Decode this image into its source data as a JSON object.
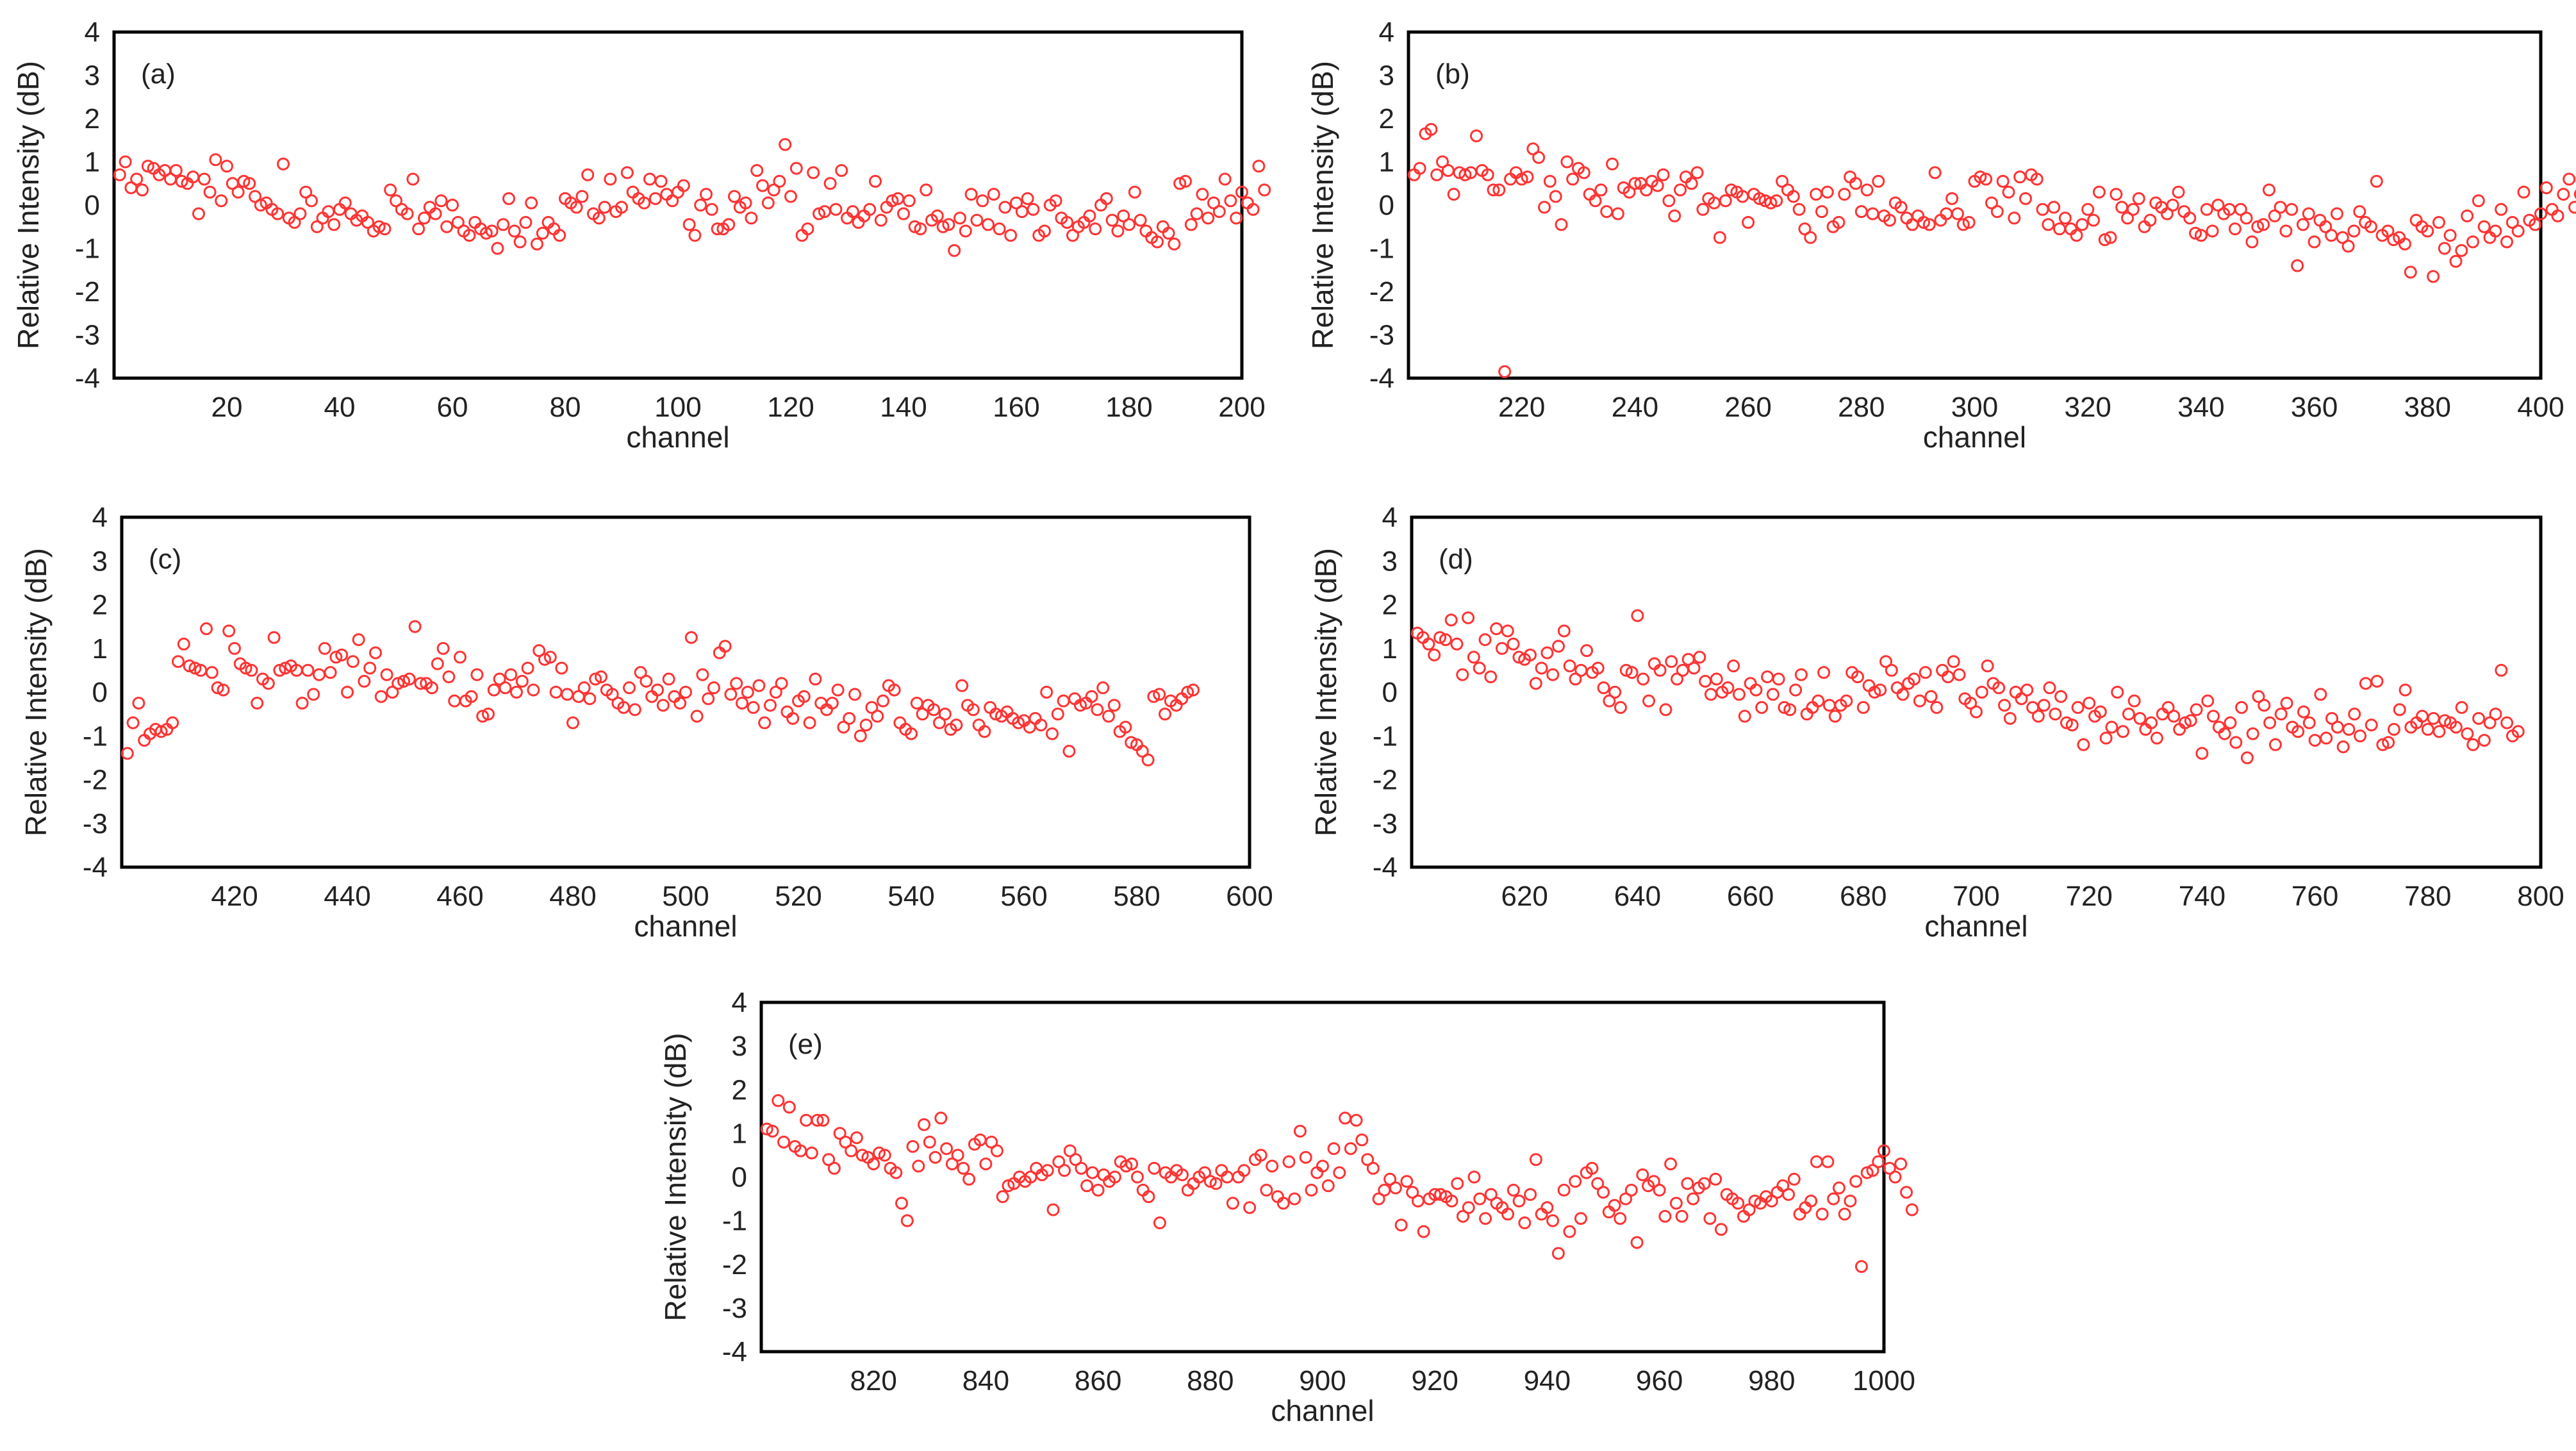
{
  "colors": {
    "marker": "#ff3333",
    "frame": "#000000",
    "text": "#222222"
  },
  "chart_data": [
    {
      "type": "scatter",
      "label": "(a)",
      "xlabel": "channel",
      "ylabel": "Relative Intensity (dB)",
      "xlim": [
        0,
        200
      ],
      "ylim": [
        -4,
        4
      ],
      "xticks": [
        "20",
        "40",
        "60",
        "80",
        "100",
        "120",
        "140",
        "160",
        "180",
        "200"
      ],
      "yticks": [
        "4",
        "3",
        "2",
        "1",
        "0",
        "-1",
        "-2",
        "-3",
        "-4"
      ],
      "x_start": 1,
      "values": [
        0.7,
        1.0,
        0.4,
        0.6,
        0.35,
        0.9,
        0.85,
        0.7,
        0.8,
        0.6,
        0.8,
        0.55,
        0.5,
        0.65,
        -0.2,
        0.6,
        0.3,
        1.05,
        0.1,
        0.9,
        0.5,
        0.3,
        0.55,
        0.5,
        0.2,
        0.0,
        0.05,
        -0.1,
        -0.2,
        0.95,
        -0.3,
        -0.4,
        -0.2,
        0.3,
        0.1,
        -0.5,
        -0.3,
        -0.15,
        -0.45,
        -0.1,
        0.05,
        -0.2,
        -0.35,
        -0.25,
        -0.4,
        -0.6,
        -0.5,
        -0.55,
        0.35,
        0.1,
        -0.1,
        -0.2,
        0.6,
        -0.55,
        -0.3,
        -0.05,
        -0.2,
        0.1,
        -0.5,
        0.0,
        -0.4,
        -0.6,
        -0.7,
        -0.4,
        -0.55,
        -0.65,
        -0.6,
        -1.0,
        -0.45,
        0.15,
        -0.6,
        -0.85,
        -0.4,
        0.05,
        -0.9,
        -0.65,
        -0.4,
        -0.55,
        -0.7,
        0.15,
        0.05,
        -0.05,
        0.2,
        0.7,
        -0.2,
        -0.3,
        -0.05,
        0.6,
        -0.15,
        -0.05,
        0.75,
        0.3,
        0.15,
        0.05,
        0.6,
        0.15,
        0.55,
        0.25,
        0.1,
        0.3,
        0.45,
        -0.45,
        -0.7,
        0.0,
        0.25,
        -0.1,
        -0.55,
        -0.55,
        -0.45,
        0.2,
        -0.05,
        0.05,
        -0.3,
        0.8,
        0.45,
        0.05,
        0.35,
        0.55,
        1.4,
        0.2,
        0.85,
        -0.7,
        -0.55,
        0.75,
        -0.2,
        -0.15,
        0.5,
        -0.1,
        0.8,
        -0.3,
        -0.15,
        -0.4,
        -0.25,
        -0.1,
        0.55,
        -0.35,
        -0.05,
        0.1,
        0.15,
        -0.2,
        0.1,
        -0.5,
        -0.55,
        0.35,
        -0.35,
        -0.25,
        -0.5,
        -0.45,
        -1.05,
        -0.3,
        -0.6,
        0.25,
        -0.35,
        0.1,
        -0.45,
        0.25,
        -0.55,
        -0.05,
        -0.7,
        0.05,
        -0.15,
        0.15,
        -0.1,
        -0.7,
        -0.6,
        0.0,
        0.1,
        -0.3,
        -0.4,
        -0.7,
        -0.5,
        -0.4,
        -0.25,
        -0.55,
        0.0,
        0.15,
        -0.35,
        -0.6,
        -0.25,
        -0.45,
        0.3,
        -0.35,
        -0.6,
        -0.75,
        -0.85,
        -0.5,
        -0.65,
        -0.9,
        0.5,
        0.55,
        -0.45,
        -0.2,
        0.25,
        -0.3,
        0.05,
        -0.15,
        0.6,
        0.1,
        -0.3,
        0.3,
        0.05,
        -0.1,
        0.9,
        0.35
      ]
    },
    {
      "type": "scatter",
      "label": "(b)",
      "xlabel": "channel",
      "ylabel": "Relative Intensity (dB)",
      "xlim": [
        200,
        400
      ],
      "ylim": [
        -4,
        4
      ],
      "xticks": [
        "220",
        "240",
        "260",
        "280",
        "300",
        "320",
        "340",
        "360",
        "380",
        "400"
      ],
      "yticks": [
        "4",
        "3",
        "2",
        "1",
        "0",
        "-1",
        "-2",
        "-3",
        "-4"
      ],
      "x_start": 201,
      "values": [
        0.7,
        0.85,
        1.65,
        1.75,
        0.7,
        1.0,
        0.8,
        0.25,
        0.75,
        0.7,
        0.75,
        1.6,
        0.8,
        0.7,
        0.35,
        0.35,
        -3.85,
        0.6,
        0.75,
        0.6,
        0.65,
        1.3,
        1.1,
        -0.05,
        0.55,
        0.2,
        -0.45,
        1.0,
        0.6,
        0.85,
        0.75,
        0.25,
        0.1,
        0.35,
        -0.15,
        0.95,
        -0.2,
        0.4,
        0.3,
        0.5,
        0.5,
        0.35,
        0.55,
        0.45,
        0.7,
        0.1,
        -0.25,
        0.35,
        0.65,
        0.5,
        0.75,
        -0.1,
        0.15,
        0.05,
        -0.75,
        0.1,
        0.35,
        0.3,
        0.2,
        -0.4,
        0.25,
        0.15,
        0.1,
        0.05,
        0.1,
        0.55,
        0.35,
        0.2,
        -0.1,
        -0.55,
        -0.75,
        0.25,
        -0.15,
        0.3,
        -0.5,
        -0.4,
        0.25,
        0.65,
        0.5,
        -0.15,
        0.35,
        -0.2,
        0.55,
        -0.25,
        -0.35,
        0.05,
        -0.05,
        -0.3,
        -0.45,
        -0.25,
        -0.4,
        -0.45,
        0.75,
        -0.35,
        -0.2,
        0.15,
        -0.2,
        -0.45,
        -0.4,
        0.55,
        0.65,
        0.6,
        0.05,
        -0.15,
        0.55,
        0.3,
        -0.3,
        0.65,
        0.15,
        0.7,
        0.6,
        -0.1,
        -0.45,
        -0.05,
        -0.55,
        -0.3,
        -0.55,
        -0.7,
        -0.45,
        -0.1,
        -0.35,
        0.3,
        -0.8,
        -0.75,
        0.25,
        -0.05,
        -0.3,
        -0.1,
        0.15,
        -0.5,
        -0.35,
        0.05,
        -0.05,
        -0.2,
        0.0,
        0.3,
        -0.15,
        -0.3,
        -0.65,
        -0.7,
        -0.1,
        -0.6,
        0.0,
        -0.2,
        -0.1,
        -0.55,
        -0.1,
        -0.3,
        -0.85,
        -0.5,
        -0.45,
        0.35,
        -0.25,
        -0.05,
        -0.6,
        -0.1,
        -1.4,
        -0.45,
        -0.2,
        -0.85,
        -0.35,
        -0.5,
        -0.7,
        -0.2,
        -0.75,
        -0.95,
        -0.6,
        -0.15,
        -0.4,
        -0.5,
        0.55,
        -0.7,
        -0.6,
        -0.8,
        -0.75,
        -0.9,
        -1.55,
        -0.35,
        -0.5,
        -0.6,
        -1.65,
        -0.4,
        -1.0,
        -0.7,
        -1.3,
        -1.05,
        -0.25,
        -0.85,
        0.1,
        -0.5,
        -0.75,
        -0.6,
        -0.1,
        -0.85,
        -0.4,
        -0.6,
        0.3,
        -0.35,
        -0.45,
        -0.2,
        0.4,
        -0.1,
        -0.25,
        0.25,
        0.6,
        -0.05,
        0.25
      ]
    },
    {
      "type": "scatter",
      "label": "(c)",
      "xlabel": "channel",
      "ylabel": "Relative Intensity (dB)",
      "xlim": [
        400,
        600
      ],
      "ylim": [
        -4,
        4
      ],
      "xticks": [
        "420",
        "440",
        "460",
        "480",
        "500",
        "520",
        "540",
        "560",
        "580",
        "600"
      ],
      "yticks": [
        "4",
        "3",
        "2",
        "1",
        "0",
        "-1",
        "-2",
        "-3",
        "-4"
      ],
      "x_start": 401,
      "values": [
        -1.4,
        -0.7,
        -0.25,
        -1.1,
        -0.95,
        -0.85,
        -0.9,
        -0.85,
        -0.7,
        0.7,
        1.1,
        0.6,
        0.55,
        0.5,
        1.45,
        0.45,
        0.1,
        0.05,
        1.4,
        1.0,
        0.65,
        0.55,
        0.5,
        -0.25,
        0.3,
        0.2,
        1.25,
        0.5,
        0.55,
        0.6,
        0.5,
        -0.25,
        0.5,
        -0.05,
        0.4,
        1.0,
        0.45,
        0.8,
        0.85,
        0.0,
        0.7,
        1.2,
        0.25,
        0.55,
        0.9,
        -0.1,
        0.4,
        0.0,
        0.2,
        0.25,
        0.3,
        1.5,
        0.2,
        0.2,
        0.1,
        0.65,
        1.0,
        0.35,
        -0.2,
        0.8,
        -0.2,
        -0.1,
        0.4,
        -0.55,
        -0.5,
        0.05,
        0.3,
        0.1,
        0.4,
        0.0,
        0.25,
        0.55,
        0.05,
        0.95,
        0.75,
        0.8,
        0.0,
        0.55,
        -0.05,
        -0.7,
        -0.1,
        0.1,
        -0.15,
        0.3,
        0.35,
        0.05,
        -0.05,
        -0.25,
        -0.35,
        0.1,
        -0.4,
        0.45,
        0.25,
        -0.1,
        0.05,
        -0.3,
        0.3,
        -0.1,
        -0.25,
        0.0,
        1.25,
        -0.55,
        0.4,
        -0.15,
        0.1,
        0.9,
        1.05,
        -0.05,
        0.2,
        -0.25,
        0.0,
        -0.35,
        0.15,
        -0.7,
        -0.3,
        0.0,
        0.2,
        -0.45,
        -0.6,
        -0.2,
        -0.1,
        -0.7,
        0.3,
        -0.25,
        -0.4,
        -0.25,
        0.05,
        -0.8,
        -0.6,
        -0.05,
        -1.0,
        -0.75,
        -0.35,
        -0.55,
        -0.2,
        0.15,
        0.05,
        -0.7,
        -0.85,
        -0.95,
        -0.25,
        -0.5,
        -0.3,
        -0.4,
        -0.7,
        -0.5,
        -0.85,
        -0.75,
        0.15,
        -0.3,
        -0.4,
        -0.75,
        -0.9,
        -0.35,
        -0.5,
        -0.55,
        -0.45,
        -0.6,
        -0.7,
        -0.65,
        -0.8,
        -0.6,
        -0.75,
        0.0,
        -0.95,
        -0.5,
        -0.2,
        -1.35,
        -0.15,
        -0.3,
        -0.25,
        -0.1,
        -0.4,
        0.1,
        -0.55,
        -0.3,
        -0.9,
        -0.8,
        -1.15,
        -1.2,
        -1.35,
        -1.55,
        -0.1,
        -0.05,
        -0.5,
        -0.2,
        -0.3,
        -0.15,
        0.0,
        0.05
      ]
    },
    {
      "type": "scatter",
      "label": "(d)",
      "xlabel": "channel",
      "ylabel": "Relative Intensity (dB)",
      "xlim": [
        600,
        800
      ],
      "ylim": [
        -4,
        4
      ],
      "xticks": [
        "620",
        "640",
        "660",
        "680",
        "700",
        "720",
        "740",
        "760",
        "780",
        "800"
      ],
      "yticks": [
        "4",
        "3",
        "2",
        "1",
        "0",
        "-1",
        "-2",
        "-3",
        "-4"
      ],
      "x_start": 601,
      "values": [
        1.35,
        1.25,
        1.1,
        0.85,
        1.25,
        1.2,
        1.65,
        1.1,
        0.4,
        1.7,
        0.8,
        0.55,
        1.2,
        0.35,
        1.45,
        1.0,
        1.4,
        1.1,
        0.8,
        0.75,
        0.85,
        0.2,
        0.55,
        0.9,
        0.4,
        1.05,
        1.4,
        0.6,
        0.3,
        0.5,
        0.95,
        0.45,
        0.55,
        0.1,
        -0.2,
        0.0,
        -0.35,
        0.5,
        0.45,
        1.75,
        0.3,
        -0.2,
        0.65,
        0.5,
        -0.4,
        0.7,
        0.3,
        0.5,
        0.75,
        0.55,
        0.8,
        0.25,
        -0.05,
        0.3,
        0.0,
        0.1,
        0.6,
        -0.05,
        -0.55,
        0.2,
        0.05,
        -0.35,
        0.35,
        -0.05,
        0.3,
        -0.35,
        -0.4,
        0.05,
        0.4,
        -0.5,
        -0.35,
        -0.2,
        0.45,
        -0.3,
        -0.55,
        -0.3,
        -0.2,
        0.45,
        0.35,
        -0.35,
        0.15,
        0.0,
        0.05,
        0.7,
        0.5,
        0.1,
        -0.05,
        0.2,
        0.3,
        -0.2,
        0.45,
        -0.1,
        -0.35,
        0.5,
        0.35,
        0.7,
        0.4,
        -0.15,
        -0.25,
        -0.45,
        0.0,
        0.6,
        0.2,
        0.1,
        -0.3,
        -0.6,
        0.0,
        -0.15,
        0.05,
        -0.35,
        -0.55,
        -0.3,
        0.1,
        -0.5,
        -0.1,
        -0.7,
        -0.75,
        -0.35,
        -1.2,
        -0.25,
        -0.55,
        -0.45,
        -1.05,
        -0.8,
        0.0,
        -0.9,
        -0.5,
        -0.2,
        -0.6,
        -0.85,
        -0.7,
        -1.05,
        -0.5,
        -0.35,
        -0.55,
        -0.85,
        -0.7,
        -0.65,
        -0.4,
        -1.4,
        -0.2,
        -0.55,
        -0.8,
        -0.95,
        -0.7,
        -1.15,
        -0.35,
        -1.5,
        -0.95,
        -0.1,
        -0.3,
        -0.7,
        -1.2,
        -0.5,
        -0.25,
        -0.8,
        -0.9,
        -0.45,
        -0.7,
        -1.1,
        -0.05,
        -1.05,
        -0.6,
        -0.8,
        -1.25,
        -0.85,
        -0.5,
        -1.0,
        0.2,
        -0.75,
        0.25,
        -1.2,
        -1.15,
        -0.85,
        -0.4,
        0.05,
        -0.8,
        -0.7,
        -0.55,
        -0.85,
        -0.6,
        -0.9,
        -0.65,
        -0.7,
        -0.8,
        -0.35,
        -0.95,
        -1.2,
        -0.6,
        -1.1,
        -0.7,
        -0.5,
        0.5,
        -0.7,
        -1.0,
        -0.9
      ]
    },
    {
      "type": "scatter",
      "label": "(e)",
      "xlabel": "channel",
      "ylabel": "Relative Intensity (dB)",
      "xlim": [
        800,
        1000
      ],
      "ylim": [
        -4,
        4
      ],
      "xticks": [
        "820",
        "840",
        "860",
        "880",
        "900",
        "920",
        "940",
        "960",
        "980",
        "1000"
      ],
      "yticks": [
        "4",
        "3",
        "2",
        "1",
        "0",
        "-1",
        "-2",
        "-3",
        "-4"
      ],
      "x_start": 801,
      "values": [
        1.1,
        1.05,
        1.75,
        0.8,
        1.6,
        0.7,
        0.6,
        1.3,
        0.55,
        1.3,
        1.3,
        0.4,
        0.2,
        1.0,
        0.8,
        0.6,
        0.9,
        0.5,
        0.45,
        0.3,
        0.55,
        0.5,
        0.2,
        0.1,
        -0.6,
        -1.0,
        0.7,
        0.25,
        1.2,
        0.8,
        0.45,
        1.35,
        0.65,
        0.3,
        0.5,
        0.2,
        -0.05,
        0.75,
        0.85,
        0.3,
        0.8,
        0.6,
        -0.45,
        -0.2,
        -0.15,
        0.0,
        -0.1,
        0.0,
        0.2,
        0.05,
        0.15,
        -0.75,
        0.35,
        0.15,
        0.6,
        0.4,
        0.2,
        -0.2,
        0.1,
        -0.3,
        0.05,
        -0.1,
        0.0,
        0.35,
        0.25,
        0.3,
        0.0,
        -0.3,
        -0.45,
        0.2,
        -1.05,
        0.1,
        0.0,
        0.15,
        0.05,
        -0.3,
        -0.15,
        0.0,
        0.1,
        -0.1,
        -0.15,
        0.15,
        0.0,
        -0.6,
        0.0,
        0.15,
        -0.7,
        0.4,
        0.5,
        -0.3,
        0.25,
        -0.45,
        -0.6,
        0.35,
        -0.5,
        1.05,
        0.45,
        -0.3,
        0.1,
        0.25,
        -0.2,
        0.65,
        0.1,
        1.35,
        0.65,
        1.3,
        0.85,
        0.4,
        0.2,
        -0.5,
        -0.3,
        -0.05,
        -0.25,
        -1.1,
        -0.1,
        -0.35,
        -0.55,
        -1.25,
        -0.5,
        -0.4,
        -0.4,
        -0.45,
        -0.55,
        -0.15,
        -0.9,
        -0.7,
        0.0,
        -0.5,
        -0.95,
        -0.4,
        -0.6,
        -0.7,
        -0.85,
        -0.3,
        -0.55,
        -1.05,
        -0.4,
        0.4,
        -0.85,
        -0.7,
        -1.0,
        -1.75,
        -0.3,
        -1.25,
        -0.1,
        -0.95,
        0.1,
        0.2,
        -0.15,
        -0.35,
        -0.8,
        -0.65,
        -0.95,
        -0.5,
        -0.3,
        -1.5,
        0.05,
        -0.2,
        -0.1,
        -0.3,
        -0.9,
        0.3,
        -0.6,
        -0.9,
        -0.15,
        -0.5,
        -0.25,
        -0.15,
        -0.95,
        -0.05,
        -1.2,
        -0.4,
        -0.5,
        -0.6,
        -0.9,
        -0.75,
        -0.55,
        -0.6,
        -0.45,
        -0.55,
        -0.35,
        -0.2,
        -0.4,
        -0.05,
        -0.85,
        -0.7,
        -0.55,
        0.35,
        -0.85,
        0.35,
        -0.5,
        -0.25,
        -0.85,
        -0.55,
        -0.1,
        -2.05,
        0.1,
        0.15,
        0.35,
        0.6,
        0.2,
        0.0,
        0.3,
        -0.35,
        -0.75
      ]
    }
  ]
}
